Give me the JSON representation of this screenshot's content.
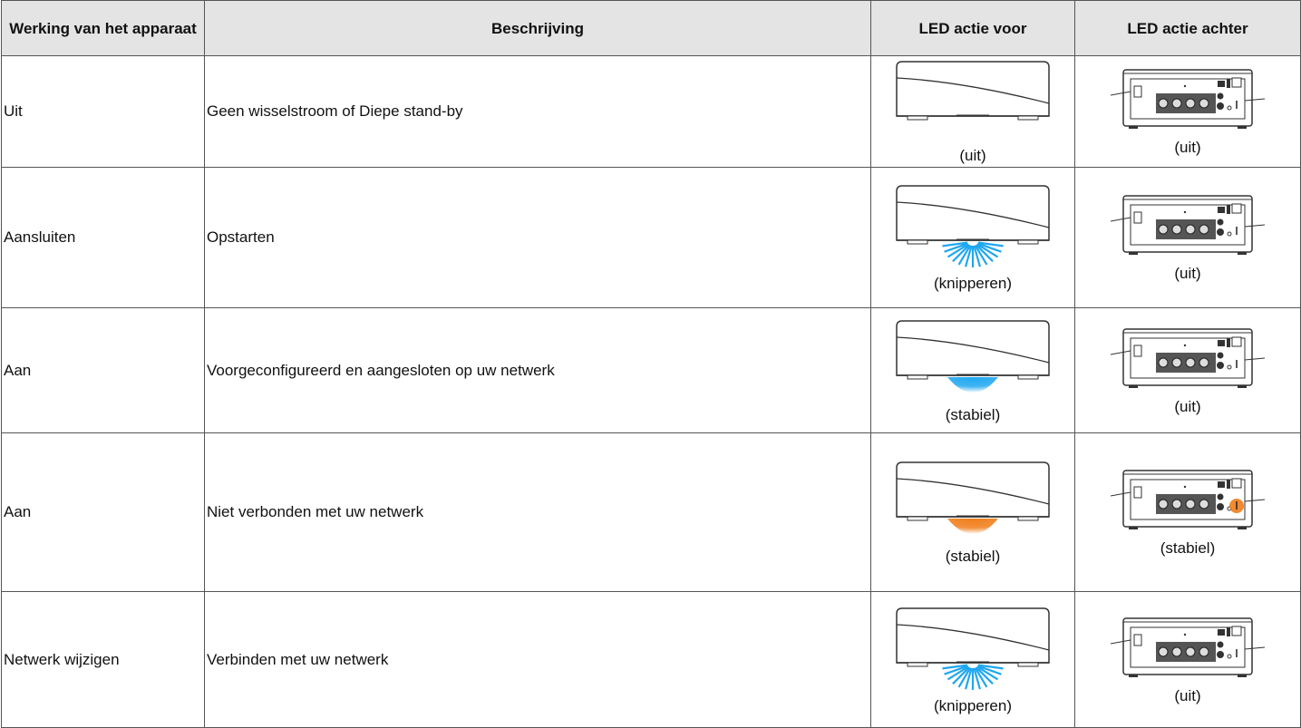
{
  "header": [
    "Werking van het apparaat",
    "Beschrijving",
    "LED actie voor",
    "LED actie achter"
  ],
  "rows": [
    [
      "Uit",
      "Geen wisselstroom of Diepe stand-by",
      "(uit)",
      "(uit)"
    ],
    [
      "Aansluiten",
      "Opstarten",
      "(knipperen)",
      "(uit)"
    ],
    [
      "Aan",
      "Voorgeconfigureerd en aangesloten op uw netwerk",
      "(stabiel)",
      "(uit)"
    ],
    [
      "Aan",
      "Niet verbonden met uw netwerk",
      "(stabiel)",
      "(stabiel)"
    ],
    [
      "Netwerk wijzigen",
      "Verbinden met uw netwerk",
      "(knipperen)",
      "(uit)"
    ]
  ]
}
